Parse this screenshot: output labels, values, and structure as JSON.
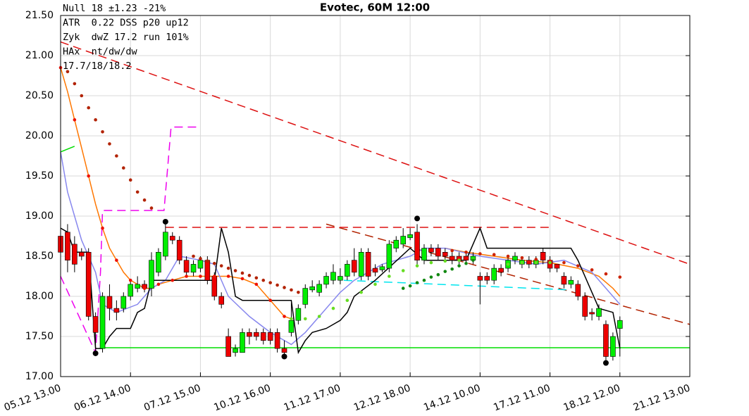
{
  "chart_data": {
    "type": "candlestick",
    "title": "Evotec, 60M 12:00",
    "annotations": [
      "Null 18 ±1.23 -21%",
      "ATR  0.22 DSS p20 up12",
      "Zyk  dwZ 17.2 run 101%",
      "HAx  nt/dw/dw",
      "17.7/18/18.2"
    ],
    "up_color": "#00ee00",
    "down_color": "#ee0000",
    "grid": true,
    "xlim": [
      0,
      90
    ],
    "xticks": [
      {
        "value": 0,
        "label": "05.12 13.00"
      },
      {
        "value": 10,
        "label": "06.12 14.00"
      },
      {
        "value": 20,
        "label": "07.12 15.00"
      },
      {
        "value": 30,
        "label": "10.12 16.00"
      },
      {
        "value": 40,
        "label": "11.12 17.00"
      },
      {
        "value": 50,
        "label": "12.12 18.00"
      },
      {
        "value": 60,
        "label": "14.12 10.00"
      },
      {
        "value": 70,
        "label": "17.12 11.00"
      },
      {
        "value": 80,
        "label": "18.12 12.00"
      },
      {
        "value": 90,
        "label": "21.12 13.00"
      }
    ],
    "ylim": [
      17,
      21.5
    ],
    "yticks": [
      {
        "value": 17,
        "label": "17.00"
      },
      {
        "value": 17.5,
        "label": "17.50"
      },
      {
        "value": 18,
        "label": "18.00"
      },
      {
        "value": 18.5,
        "label": "18.50"
      },
      {
        "value": 19,
        "label": "19.00"
      },
      {
        "value": 19.5,
        "label": "19.50"
      },
      {
        "value": 20,
        "label": "20.00"
      },
      {
        "value": 20.5,
        "label": "20.50"
      },
      {
        "value": 21,
        "label": "21.00"
      },
      {
        "value": 21.5,
        "label": "21.50"
      }
    ],
    "x": [
      0,
      1,
      2,
      3,
      4,
      5,
      6,
      7,
      8,
      9,
      10,
      11,
      12,
      13,
      14,
      15,
      16,
      17,
      18,
      19,
      20,
      21,
      22,
      23,
      24,
      25,
      26,
      27,
      28,
      29,
      30,
      31,
      32,
      33,
      34,
      35,
      36,
      37,
      38,
      39,
      40,
      41,
      42,
      43,
      44,
      45,
      46,
      47,
      48,
      49,
      50,
      51,
      52,
      53,
      54,
      55,
      56,
      57,
      58,
      59,
      60,
      61,
      62,
      63,
      64,
      65,
      66,
      67,
      68,
      69,
      70,
      71,
      72,
      73,
      74,
      75,
      76,
      77,
      78,
      79,
      80
    ],
    "open": [
      18.75,
      18.8,
      18.65,
      18.55,
      18.55,
      17.75,
      17.35,
      18.0,
      17.85,
      17.85,
      18.0,
      18.1,
      18.15,
      18.1,
      18.3,
      18.5,
      18.75,
      18.7,
      18.45,
      18.3,
      18.35,
      18.45,
      18.25,
      18.0,
      17.5,
      17.3,
      17.3,
      17.55,
      17.55,
      17.55,
      17.55,
      17.55,
      17.35,
      17.55,
      17.7,
      17.9,
      18.08,
      18.05,
      18.15,
      18.2,
      18.2,
      18.25,
      18.45,
      18.25,
      18.55,
      18.35,
      18.33,
      18.35,
      18.6,
      18.65,
      18.73,
      18.8,
      18.45,
      18.6,
      18.6,
      18.55,
      18.5,
      18.5,
      18.5,
      18.45,
      18.25,
      18.25,
      18.2,
      18.35,
      18.35,
      18.45,
      18.4,
      18.45,
      18.4,
      18.55,
      18.45,
      18.4,
      18.25,
      18.15,
      18.15,
      18.0,
      17.8,
      17.75,
      17.65,
      17.25,
      17.6
    ],
    "high": [
      18.85,
      18.9,
      18.75,
      18.6,
      18.6,
      17.8,
      18.05,
      18.15,
      17.95,
      18.05,
      18.2,
      18.25,
      18.2,
      18.55,
      18.6,
      18.9,
      18.8,
      18.75,
      18.5,
      18.45,
      18.5,
      18.5,
      18.3,
      18.05,
      17.6,
      17.4,
      17.6,
      17.6,
      17.6,
      17.6,
      17.6,
      17.6,
      17.45,
      17.95,
      17.9,
      18.15,
      18.2,
      18.2,
      18.3,
      18.4,
      18.35,
      18.45,
      18.6,
      18.6,
      18.6,
      18.4,
      18.4,
      18.7,
      18.75,
      18.85,
      18.85,
      18.9,
      18.65,
      18.65,
      18.65,
      18.6,
      18.55,
      18.55,
      18.55,
      18.55,
      18.3,
      18.3,
      18.4,
      18.4,
      18.5,
      18.55,
      18.5,
      18.5,
      18.5,
      18.6,
      18.5,
      18.4,
      18.3,
      18.25,
      18.2,
      18.05,
      17.85,
      17.9,
      17.7,
      17.55,
      17.75
    ],
    "low": [
      18.45,
      18.3,
      18.3,
      18.45,
      17.7,
      17.3,
      17.3,
      17.7,
      17.7,
      17.8,
      17.95,
      18.05,
      18.05,
      18.0,
      18.25,
      18.45,
      18.65,
      18.4,
      18.25,
      18.25,
      18.3,
      18.15,
      17.95,
      17.85,
      17.25,
      17.25,
      17.3,
      17.4,
      17.45,
      17.4,
      17.4,
      17.3,
      17.25,
      17.5,
      17.65,
      17.85,
      18.05,
      18.0,
      18.1,
      18.15,
      18.15,
      18.2,
      18.25,
      18.2,
      18.2,
      18.25,
      18.3,
      18.3,
      18.55,
      18.6,
      18.7,
      18.4,
      18.4,
      18.5,
      18.45,
      18.45,
      18.4,
      18.4,
      18.4,
      18.4,
      17.9,
      18.15,
      18.15,
      18.25,
      18.3,
      18.4,
      18.35,
      18.35,
      18.35,
      18.4,
      18.3,
      18.3,
      18.1,
      18.1,
      17.95,
      17.7,
      17.7,
      17.7,
      17.2,
      17.2,
      17.25
    ],
    "close": [
      18.55,
      18.45,
      18.4,
      18.5,
      17.75,
      17.55,
      18.0,
      17.85,
      17.8,
      18.0,
      18.15,
      18.15,
      18.1,
      18.45,
      18.55,
      18.8,
      18.7,
      18.45,
      18.3,
      18.4,
      18.45,
      18.2,
      18.0,
      17.9,
      17.25,
      17.35,
      17.55,
      17.5,
      17.5,
      17.45,
      17.45,
      17.35,
      17.3,
      17.7,
      17.85,
      18.1,
      18.12,
      18.15,
      18.25,
      18.3,
      18.25,
      18.4,
      18.3,
      18.55,
      18.25,
      18.3,
      18.37,
      18.65,
      18.7,
      18.75,
      18.77,
      18.45,
      18.6,
      18.55,
      18.5,
      18.5,
      18.45,
      18.45,
      18.45,
      18.5,
      18.2,
      18.2,
      18.35,
      18.3,
      18.45,
      18.5,
      18.45,
      18.4,
      18.45,
      18.45,
      18.35,
      18.35,
      18.15,
      18.2,
      18.0,
      17.75,
      17.78,
      17.85,
      17.25,
      17.5,
      17.7
    ],
    "lines": [
      {
        "color": "#dd1111",
        "dash": "12,7",
        "x": [
          0,
          90
        ],
        "values": [
          21.17,
          18.4
        ]
      },
      {
        "color": "#b22200",
        "dash": "12,7",
        "x": [
          38,
          90
        ],
        "values": [
          18.9,
          17.65
        ]
      },
      {
        "color": "#dd1111",
        "dash": "12,7",
        "x": [
          15,
          70
        ],
        "values": [
          18.86,
          18.86
        ]
      },
      {
        "color": "#ee00ee",
        "dash": "12,7",
        "x": [
          0,
          5,
          5.7,
          6,
          14.8,
          15.8,
          19.9
        ],
        "values": [
          18.25,
          17.3,
          18.3,
          19.07,
          19.07,
          20.11,
          20.11
        ]
      },
      {
        "color": "#00dd00",
        "dash": "",
        "x": [
          5.7,
          90
        ],
        "values": [
          17.36,
          17.36
        ]
      },
      {
        "color": "#00dd00",
        "dash": "",
        "x": [
          0,
          2
        ],
        "values": [
          19.8,
          19.87
        ]
      },
      {
        "color": "#00e5ee",
        "dash": "12,7",
        "x": [
          40.5,
          73
        ],
        "values": [
          18.2,
          18.08
        ]
      },
      {
        "color": "#ff7700",
        "dash": "",
        "x": [
          0,
          1,
          2,
          3,
          4,
          5,
          6,
          7,
          8,
          9,
          10,
          11,
          12,
          13,
          14,
          16,
          18,
          20,
          22,
          24,
          26,
          28,
          30,
          31,
          32,
          33,
          null,
          55,
          58,
          62,
          66,
          70,
          74,
          77,
          79,
          80
        ],
        "values": [
          20.85,
          20.55,
          20.2,
          19.85,
          19.5,
          19.15,
          18.85,
          18.6,
          18.45,
          18.3,
          18.2,
          18.15,
          18.1,
          18.1,
          18.15,
          18.2,
          18.25,
          18.25,
          18.25,
          18.25,
          18.22,
          18.15,
          17.95,
          17.85,
          17.75,
          17.72,
          null,
          18.6,
          18.55,
          18.5,
          18.45,
          18.42,
          18.35,
          18.25,
          18.1,
          18.0
        ]
      },
      {
        "color": "#8888ee",
        "dash": "",
        "x": [
          0,
          1,
          2,
          3,
          5,
          6,
          8,
          11,
          13,
          15,
          17,
          20,
          22,
          24,
          27,
          30,
          32,
          33,
          35,
          38,
          40,
          42,
          46,
          50,
          52,
          55,
          60,
          64,
          68,
          72,
          76,
          79,
          80
        ],
        "values": [
          19.8,
          19.3,
          19.0,
          18.7,
          18.3,
          17.9,
          17.8,
          17.9,
          18.1,
          18.2,
          18.5,
          18.45,
          18.4,
          18.0,
          17.75,
          17.55,
          17.45,
          17.4,
          17.55,
          17.85,
          18.05,
          18.2,
          18.4,
          18.5,
          18.6,
          18.6,
          18.5,
          18.45,
          18.4,
          18.45,
          18.3,
          18.0,
          17.9
        ]
      },
      {
        "color": "#000000",
        "dash": "",
        "x": [
          0,
          1,
          2,
          4,
          5,
          6,
          7,
          8,
          10,
          11,
          12,
          13,
          22,
          23,
          24,
          25,
          26,
          33,
          34,
          35,
          36,
          38,
          40,
          41,
          42,
          45,
          50,
          52,
          58,
          60,
          61,
          73,
          74,
          77,
          79,
          80
        ],
        "values": [
          18.85,
          18.8,
          18.55,
          18.55,
          17.35,
          17.35,
          17.5,
          17.6,
          17.6,
          17.8,
          17.85,
          18.2,
          18.2,
          18.85,
          18.55,
          18.0,
          17.95,
          17.95,
          17.3,
          17.45,
          17.55,
          17.6,
          17.7,
          17.8,
          18.0,
          18.2,
          18.6,
          18.45,
          18.45,
          18.85,
          18.6,
          18.6,
          18.45,
          17.85,
          17.8,
          17.35
        ]
      }
    ],
    "dots": [
      {
        "color": "#b22200",
        "x": [
          1,
          2,
          3,
          4,
          5,
          6,
          7,
          8,
          9,
          10,
          11,
          12,
          13
        ],
        "values": [
          20.8,
          20.65,
          20.5,
          20.35,
          20.2,
          20.05,
          19.9,
          19.75,
          19.6,
          19.45,
          19.3,
          19.2,
          19.1
        ]
      },
      {
        "color": "#b22200",
        "x": [
          19,
          20,
          21,
          22,
          23,
          24,
          25,
          26,
          27,
          28,
          29,
          30,
          31,
          32,
          33,
          34
        ],
        "values": [
          18.5,
          18.47,
          18.44,
          18.41,
          18.38,
          18.35,
          18.32,
          18.29,
          18.26,
          18.23,
          18.2,
          18.17,
          18.14,
          18.11,
          18.08,
          18.05
        ]
      },
      {
        "color": "#cc2200",
        "x": [
          56,
          58,
          60,
          62,
          64,
          66,
          68,
          70,
          72,
          74,
          76,
          78,
          80
        ],
        "values": [
          18.57,
          18.55,
          18.53,
          18.52,
          18.5,
          18.48,
          18.46,
          18.44,
          18.42,
          18.38,
          18.33,
          18.28,
          18.24
        ]
      },
      {
        "color": "#ee1100",
        "x": [
          0,
          2,
          4,
          6,
          8,
          10,
          12,
          14,
          16,
          18,
          20,
          22,
          24,
          26,
          28,
          30,
          32
        ],
        "values": [
          20.85,
          20.2,
          19.5,
          18.85,
          18.45,
          18.2,
          18.1,
          18.15,
          18.2,
          18.25,
          18.25,
          18.25,
          18.25,
          18.22,
          18.15,
          17.95,
          17.75
        ]
      },
      {
        "color": "#66dd22",
        "x": [
          33,
          35,
          37,
          39,
          41,
          43,
          45,
          47,
          49,
          51,
          53,
          55,
          57,
          59,
          64,
          66,
          68,
          70
        ],
        "values": [
          17.72,
          17.72,
          17.75,
          17.85,
          17.95,
          18.05,
          18.15,
          18.25,
          18.32,
          18.38,
          18.42,
          18.44,
          18.45,
          18.46,
          18.4,
          18.42,
          18.42,
          18.42
        ]
      },
      {
        "color": "#118811",
        "x": [
          49,
          50,
          51,
          52,
          53,
          54,
          55,
          56,
          57,
          58,
          59
        ],
        "values": [
          18.1,
          18.13,
          18.17,
          18.2,
          18.24,
          18.27,
          18.31,
          18.34,
          18.38,
          18.41,
          18.45
        ]
      }
    ],
    "pivots": {
      "x": [
        5,
        15,
        32,
        51,
        78
      ],
      "values": [
        17.29,
        18.93,
        17.25,
        18.97,
        17.17
      ]
    }
  }
}
